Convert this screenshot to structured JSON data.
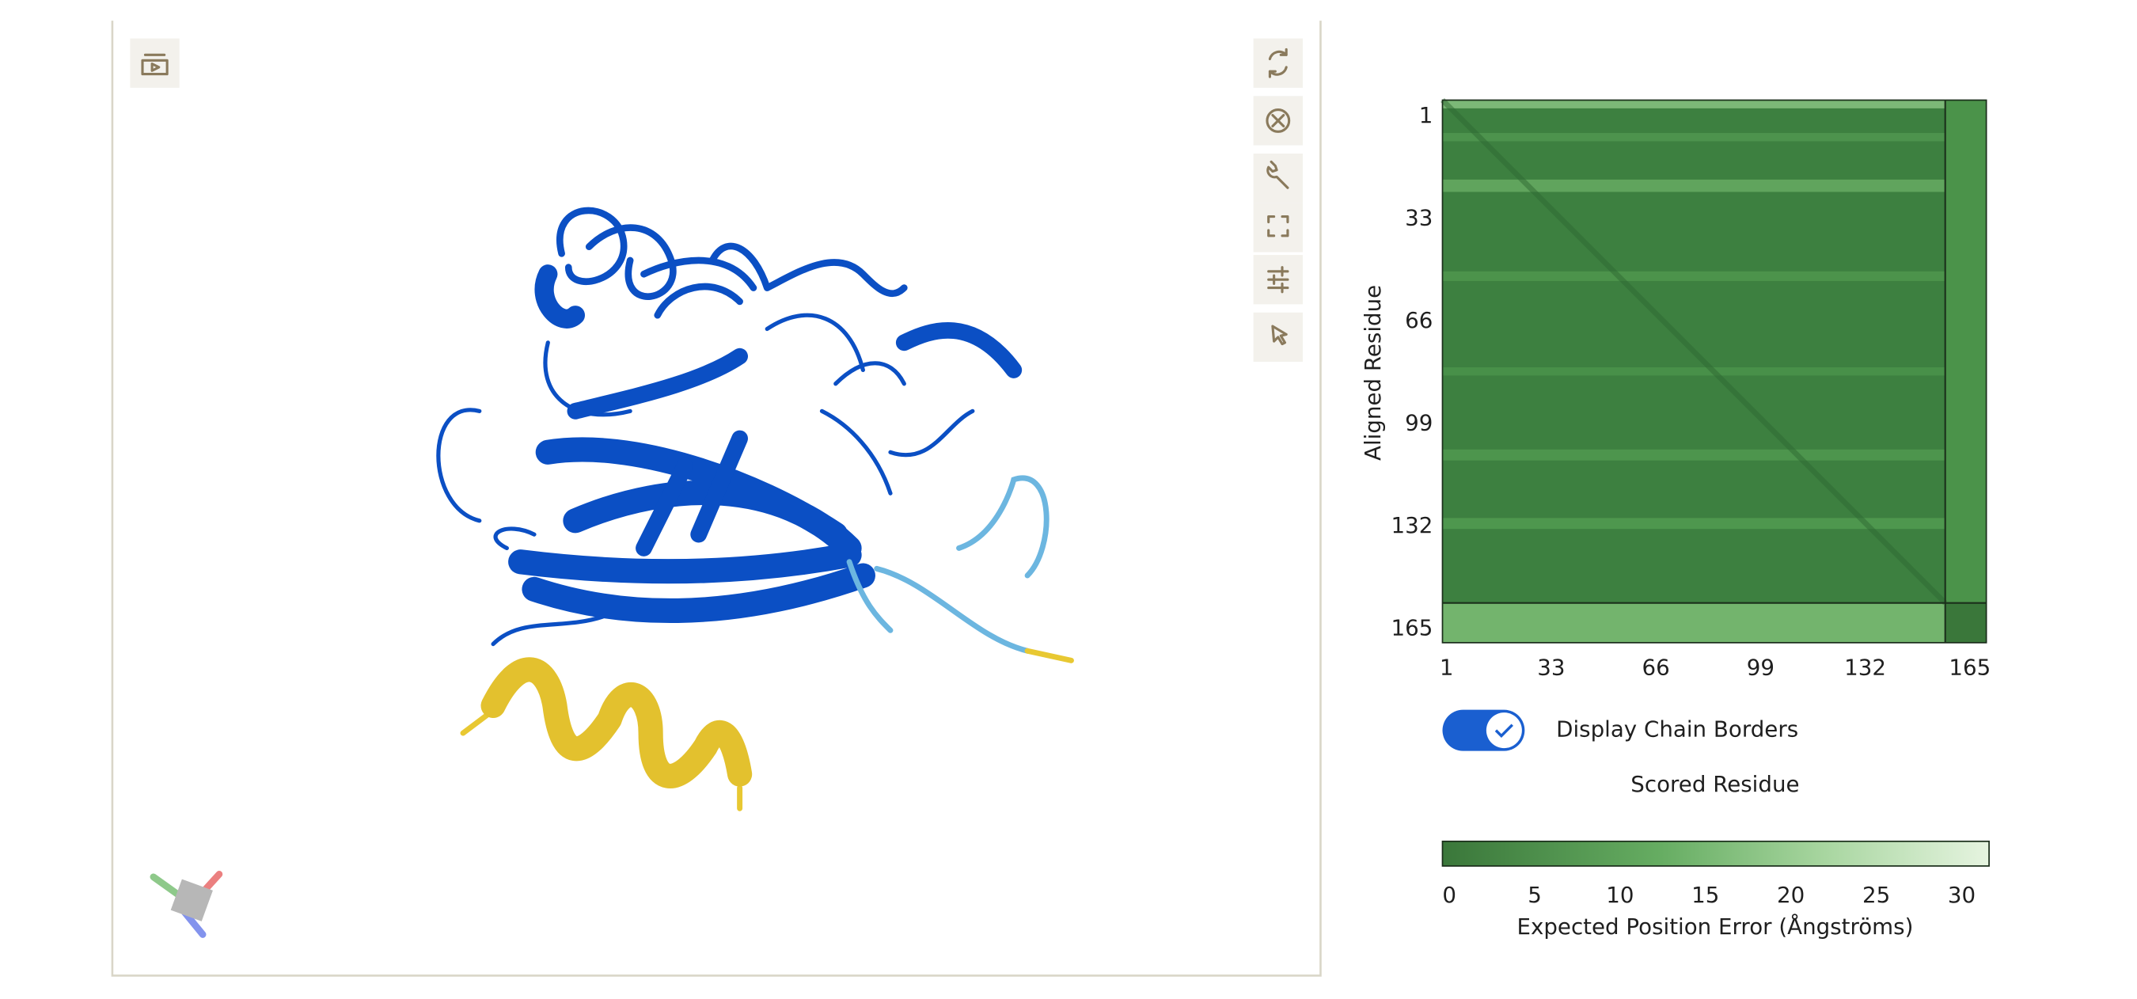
{
  "pae_plot": {
    "y_axis_label": "Aligned Residue",
    "y_ticks": [
      1,
      33,
      66,
      99,
      132,
      165
    ],
    "x_ticks": [
      1,
      33,
      66,
      99,
      132,
      165
    ],
    "x_axis_label": "Scored Residue"
  },
  "chain_borders_toggle": {
    "label": "Display Chain Borders"
  },
  "color_scale": {
    "ticks": [
      0,
      5,
      10,
      15,
      20,
      25,
      30
    ],
    "label": "Expected Position Error (Ångströms)"
  }
}
